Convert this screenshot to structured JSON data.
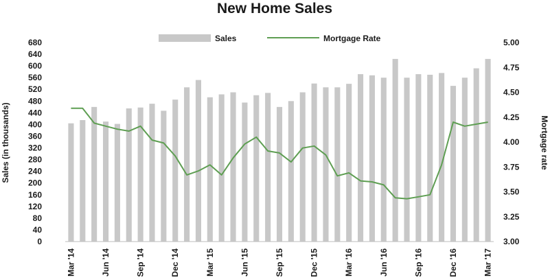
{
  "chart_data": {
    "type": "bar",
    "title": "New Home Sales",
    "ylabel": "Sales (in thousands)",
    "y2label": "Mortgage rate",
    "ylim": [
      0,
      680
    ],
    "yticks": [
      0,
      40,
      80,
      120,
      160,
      200,
      240,
      280,
      320,
      360,
      400,
      440,
      480,
      520,
      560,
      600,
      640,
      680
    ],
    "y2lim": [
      3.0,
      5.0
    ],
    "y2ticks": [
      "3.00",
      "3.25",
      "3.50",
      "3.75",
      "4.00",
      "4.25",
      "4.50",
      "4.75",
      "5.00"
    ],
    "x_tick_labels": [
      "Mar '14",
      "Jun '14",
      "Sep '14",
      "Dec '14",
      "Mar '15",
      "Jun '15",
      "Sep '15",
      "Dec '15",
      "Mar '16",
      "Jun '16",
      "Sep '16",
      "Dec '16",
      "Mar '17"
    ],
    "x_tick_every": 3,
    "categories": [
      "Mar 2014",
      "Apr 2014",
      "May 2014",
      "Jun 2014",
      "Jul 2014",
      "Aug 2014",
      "Sep 2014",
      "Oct 2014",
      "Nov 2014",
      "Dec 2014",
      "Jan 2015",
      "Feb 2015",
      "Mar 2015",
      "Apr 2015",
      "May 2015",
      "Jun 2015",
      "Jul 2015",
      "Aug 2015",
      "Sep 2015",
      "Oct 2015",
      "Nov 2015",
      "Dec 2015",
      "Jan 2016",
      "Feb 2016",
      "Mar 2016",
      "Apr 2016",
      "May 2016",
      "Jun 2016",
      "Jul 2016",
      "Aug 2016",
      "Sep 2016",
      "Oct 2016",
      "Nov 2016",
      "Dec 2016",
      "Jan 2017",
      "Feb 2017",
      "Mar 2017"
    ],
    "legend_position": "top-center",
    "grid": false,
    "series": [
      {
        "name": "Sales",
        "type": "bar",
        "axis": "left",
        "color": "#c8c8c8",
        "values": [
          404,
          415,
          460,
          410,
          402,
          455,
          458,
          471,
          447,
          485,
          527,
          552,
          493,
          503,
          510,
          475,
          500,
          508,
          460,
          480,
          510,
          540,
          527,
          527,
          539,
          572,
          568,
          560,
          624,
          560,
          572,
          570,
          576,
          532,
          560,
          592,
          624
        ]
      },
      {
        "name": "Mortgage Rate",
        "type": "line",
        "axis": "right",
        "color": "#5e9e52",
        "values": [
          4.34,
          4.34,
          4.19,
          4.16,
          4.13,
          4.11,
          4.16,
          4.02,
          3.99,
          3.86,
          3.67,
          3.71,
          3.77,
          3.67,
          3.84,
          3.98,
          4.05,
          3.91,
          3.89,
          3.8,
          3.94,
          3.96,
          3.87,
          3.66,
          3.69,
          3.61,
          3.6,
          3.57,
          3.44,
          3.43,
          3.45,
          3.47,
          3.77,
          4.2,
          4.16,
          4.18,
          4.2
        ]
      }
    ]
  }
}
